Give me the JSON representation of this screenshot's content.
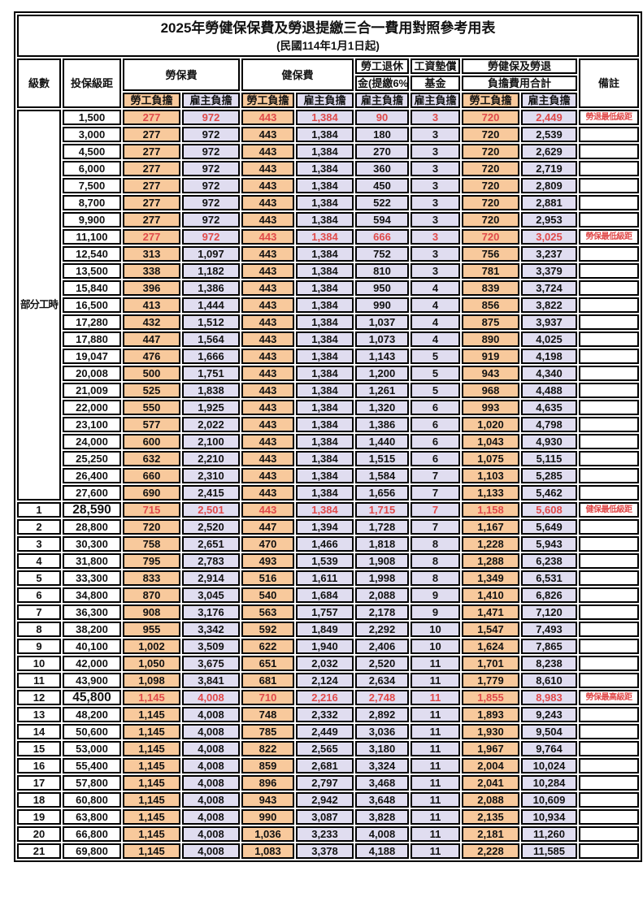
{
  "title": "2025年勞健保保費及勞退提繳三合一費用對照參考用表",
  "subtitle": "(民國114年1月1日起)",
  "columns": {
    "level": "級數",
    "bracket": "投保級距",
    "labor_insurance": "勞保費",
    "health_insurance": "健保費",
    "pension_line1": "勞工退休",
    "pension_line2": "金(提繳6%)",
    "wage_arrears_fund_line1": "工資墊償",
    "wage_arrears_fund_line2": "基金",
    "total_line1": "勞健保及勞退",
    "total_line2": "負擔費用合計",
    "remarks": "備註",
    "employee_share": "勞工負擔",
    "employer_share": "雇主負擔"
  },
  "part_time": {
    "label": "部分工時",
    "rowspan": 23
  },
  "colors": {
    "employee_share_bg": "#F8C99C",
    "employer_share_bg": "#E0DDF0",
    "highlight_text": "#E04A4A",
    "border": "#000000"
  },
  "rows": [
    {
      "level": "",
      "bracket": "1,500",
      "values": [
        "277",
        "972",
        "443",
        "1,384",
        "90",
        "3",
        "720",
        "2,449"
      ],
      "note": "勞退最低級距",
      "highlight": true
    },
    {
      "level": "",
      "bracket": "3,000",
      "values": [
        "277",
        "972",
        "443",
        "1,384",
        "180",
        "3",
        "720",
        "2,539"
      ],
      "note": ""
    },
    {
      "level": "",
      "bracket": "4,500",
      "values": [
        "277",
        "972",
        "443",
        "1,384",
        "270",
        "3",
        "720",
        "2,629"
      ],
      "note": ""
    },
    {
      "level": "",
      "bracket": "6,000",
      "values": [
        "277",
        "972",
        "443",
        "1,384",
        "360",
        "3",
        "720",
        "2,719"
      ],
      "note": ""
    },
    {
      "level": "",
      "bracket": "7,500",
      "values": [
        "277",
        "972",
        "443",
        "1,384",
        "450",
        "3",
        "720",
        "2,809"
      ],
      "note": ""
    },
    {
      "level": "",
      "bracket": "8,700",
      "values": [
        "277",
        "972",
        "443",
        "1,384",
        "522",
        "3",
        "720",
        "2,881"
      ],
      "note": ""
    },
    {
      "level": "",
      "bracket": "9,900",
      "values": [
        "277",
        "972",
        "443",
        "1,384",
        "594",
        "3",
        "720",
        "2,953"
      ],
      "note": ""
    },
    {
      "level": "",
      "bracket": "11,100",
      "values": [
        "277",
        "972",
        "443",
        "1,384",
        "666",
        "3",
        "720",
        "3,025"
      ],
      "note": "勞保最低級距",
      "highlight": true
    },
    {
      "level": "",
      "bracket": "12,540",
      "values": [
        "313",
        "1,097",
        "443",
        "1,384",
        "752",
        "3",
        "756",
        "3,237"
      ],
      "note": ""
    },
    {
      "level": "",
      "bracket": "13,500",
      "values": [
        "338",
        "1,182",
        "443",
        "1,384",
        "810",
        "3",
        "781",
        "3,379"
      ],
      "note": ""
    },
    {
      "level": "",
      "bracket": "15,840",
      "values": [
        "396",
        "1,386",
        "443",
        "1,384",
        "950",
        "4",
        "839",
        "3,724"
      ],
      "note": ""
    },
    {
      "level": "",
      "bracket": "16,500",
      "values": [
        "413",
        "1,444",
        "443",
        "1,384",
        "990",
        "4",
        "856",
        "3,822"
      ],
      "note": ""
    },
    {
      "level": "",
      "bracket": "17,280",
      "values": [
        "432",
        "1,512",
        "443",
        "1,384",
        "1,037",
        "4",
        "875",
        "3,937"
      ],
      "note": ""
    },
    {
      "level": "",
      "bracket": "17,880",
      "values": [
        "447",
        "1,564",
        "443",
        "1,384",
        "1,073",
        "4",
        "890",
        "4,025"
      ],
      "note": ""
    },
    {
      "level": "",
      "bracket": "19,047",
      "values": [
        "476",
        "1,666",
        "443",
        "1,384",
        "1,143",
        "5",
        "919",
        "4,198"
      ],
      "note": ""
    },
    {
      "level": "",
      "bracket": "20,008",
      "values": [
        "500",
        "1,751",
        "443",
        "1,384",
        "1,200",
        "5",
        "943",
        "4,340"
      ],
      "note": ""
    },
    {
      "level": "",
      "bracket": "21,009",
      "values": [
        "525",
        "1,838",
        "443",
        "1,384",
        "1,261",
        "5",
        "968",
        "4,488"
      ],
      "note": ""
    },
    {
      "level": "",
      "bracket": "22,000",
      "values": [
        "550",
        "1,925",
        "443",
        "1,384",
        "1,320",
        "6",
        "993",
        "4,635"
      ],
      "note": ""
    },
    {
      "level": "",
      "bracket": "23,100",
      "values": [
        "577",
        "2,022",
        "443",
        "1,384",
        "1,386",
        "6",
        "1,020",
        "4,798"
      ],
      "note": ""
    },
    {
      "level": "",
      "bracket": "24,000",
      "values": [
        "600",
        "2,100",
        "443",
        "1,384",
        "1,440",
        "6",
        "1,043",
        "4,930"
      ],
      "note": ""
    },
    {
      "level": "",
      "bracket": "25,250",
      "values": [
        "632",
        "2,210",
        "443",
        "1,384",
        "1,515",
        "6",
        "1,075",
        "5,115"
      ],
      "note": ""
    },
    {
      "level": "",
      "bracket": "26,400",
      "values": [
        "660",
        "2,310",
        "443",
        "1,384",
        "1,584",
        "7",
        "1,103",
        "5,285"
      ],
      "note": ""
    },
    {
      "level": "",
      "bracket": "27,600",
      "values": [
        "690",
        "2,415",
        "443",
        "1,384",
        "1,656",
        "7",
        "1,133",
        "5,462"
      ],
      "note": ""
    },
    {
      "level": "1",
      "bracket": "28,590",
      "values": [
        "715",
        "2,501",
        "443",
        "1,384",
        "1,715",
        "7",
        "1,158",
        "5,608"
      ],
      "note": "健保最低級距",
      "highlight": true,
      "emphasis": true
    },
    {
      "level": "2",
      "bracket": "28,800",
      "values": [
        "720",
        "2,520",
        "447",
        "1,394",
        "1,728",
        "7",
        "1,167",
        "5,649"
      ],
      "note": ""
    },
    {
      "level": "3",
      "bracket": "30,300",
      "values": [
        "758",
        "2,651",
        "470",
        "1,466",
        "1,818",
        "8",
        "1,228",
        "5,943"
      ],
      "note": ""
    },
    {
      "level": "4",
      "bracket": "31,800",
      "values": [
        "795",
        "2,783",
        "493",
        "1,539",
        "1,908",
        "8",
        "1,288",
        "6,238"
      ],
      "note": ""
    },
    {
      "level": "5",
      "bracket": "33,300",
      "values": [
        "833",
        "2,914",
        "516",
        "1,611",
        "1,998",
        "8",
        "1,349",
        "6,531"
      ],
      "note": ""
    },
    {
      "level": "6",
      "bracket": "34,800",
      "values": [
        "870",
        "3,045",
        "540",
        "1,684",
        "2,088",
        "9",
        "1,410",
        "6,826"
      ],
      "note": ""
    },
    {
      "level": "7",
      "bracket": "36,300",
      "values": [
        "908",
        "3,176",
        "563",
        "1,757",
        "2,178",
        "9",
        "1,471",
        "7,120"
      ],
      "note": ""
    },
    {
      "level": "8",
      "bracket": "38,200",
      "values": [
        "955",
        "3,342",
        "592",
        "1,849",
        "2,292",
        "10",
        "1,547",
        "7,493"
      ],
      "note": ""
    },
    {
      "level": "9",
      "bracket": "40,100",
      "values": [
        "1,002",
        "3,509",
        "622",
        "1,940",
        "2,406",
        "10",
        "1,624",
        "7,865"
      ],
      "note": ""
    },
    {
      "level": "10",
      "bracket": "42,000",
      "values": [
        "1,050",
        "3,675",
        "651",
        "2,032",
        "2,520",
        "11",
        "1,701",
        "8,238"
      ],
      "note": ""
    },
    {
      "level": "11",
      "bracket": "43,900",
      "values": [
        "1,098",
        "3,841",
        "681",
        "2,124",
        "2,634",
        "11",
        "1,779",
        "8,610"
      ],
      "note": ""
    },
    {
      "level": "12",
      "bracket": "45,800",
      "values": [
        "1,145",
        "4,008",
        "710",
        "2,216",
        "2,748",
        "11",
        "1,855",
        "8,983"
      ],
      "note": "勞保最高級距",
      "highlight": true,
      "emphasis": true
    },
    {
      "level": "13",
      "bracket": "48,200",
      "values": [
        "1,145",
        "4,008",
        "748",
        "2,332",
        "2,892",
        "11",
        "1,893",
        "9,243"
      ],
      "note": ""
    },
    {
      "level": "14",
      "bracket": "50,600",
      "values": [
        "1,145",
        "4,008",
        "785",
        "2,449",
        "3,036",
        "11",
        "1,930",
        "9,504"
      ],
      "note": ""
    },
    {
      "level": "15",
      "bracket": "53,000",
      "values": [
        "1,145",
        "4,008",
        "822",
        "2,565",
        "3,180",
        "11",
        "1,967",
        "9,764"
      ],
      "note": ""
    },
    {
      "level": "16",
      "bracket": "55,400",
      "values": [
        "1,145",
        "4,008",
        "859",
        "2,681",
        "3,324",
        "11",
        "2,004",
        "10,024"
      ],
      "note": ""
    },
    {
      "level": "17",
      "bracket": "57,800",
      "values": [
        "1,145",
        "4,008",
        "896",
        "2,797",
        "3,468",
        "11",
        "2,041",
        "10,284"
      ],
      "note": ""
    },
    {
      "level": "18",
      "bracket": "60,800",
      "values": [
        "1,145",
        "4,008",
        "943",
        "2,942",
        "3,648",
        "11",
        "2,088",
        "10,609"
      ],
      "note": ""
    },
    {
      "level": "19",
      "bracket": "63,800",
      "values": [
        "1,145",
        "4,008",
        "990",
        "3,087",
        "3,828",
        "11",
        "2,135",
        "10,934"
      ],
      "note": ""
    },
    {
      "level": "20",
      "bracket": "66,800",
      "values": [
        "1,145",
        "4,008",
        "1,036",
        "3,233",
        "4,008",
        "11",
        "2,181",
        "11,260"
      ],
      "note": ""
    },
    {
      "level": "21",
      "bracket": "69,800",
      "values": [
        "1,145",
        "4,008",
        "1,083",
        "3,378",
        "4,188",
        "11",
        "2,228",
        "11,585"
      ],
      "note": ""
    }
  ]
}
